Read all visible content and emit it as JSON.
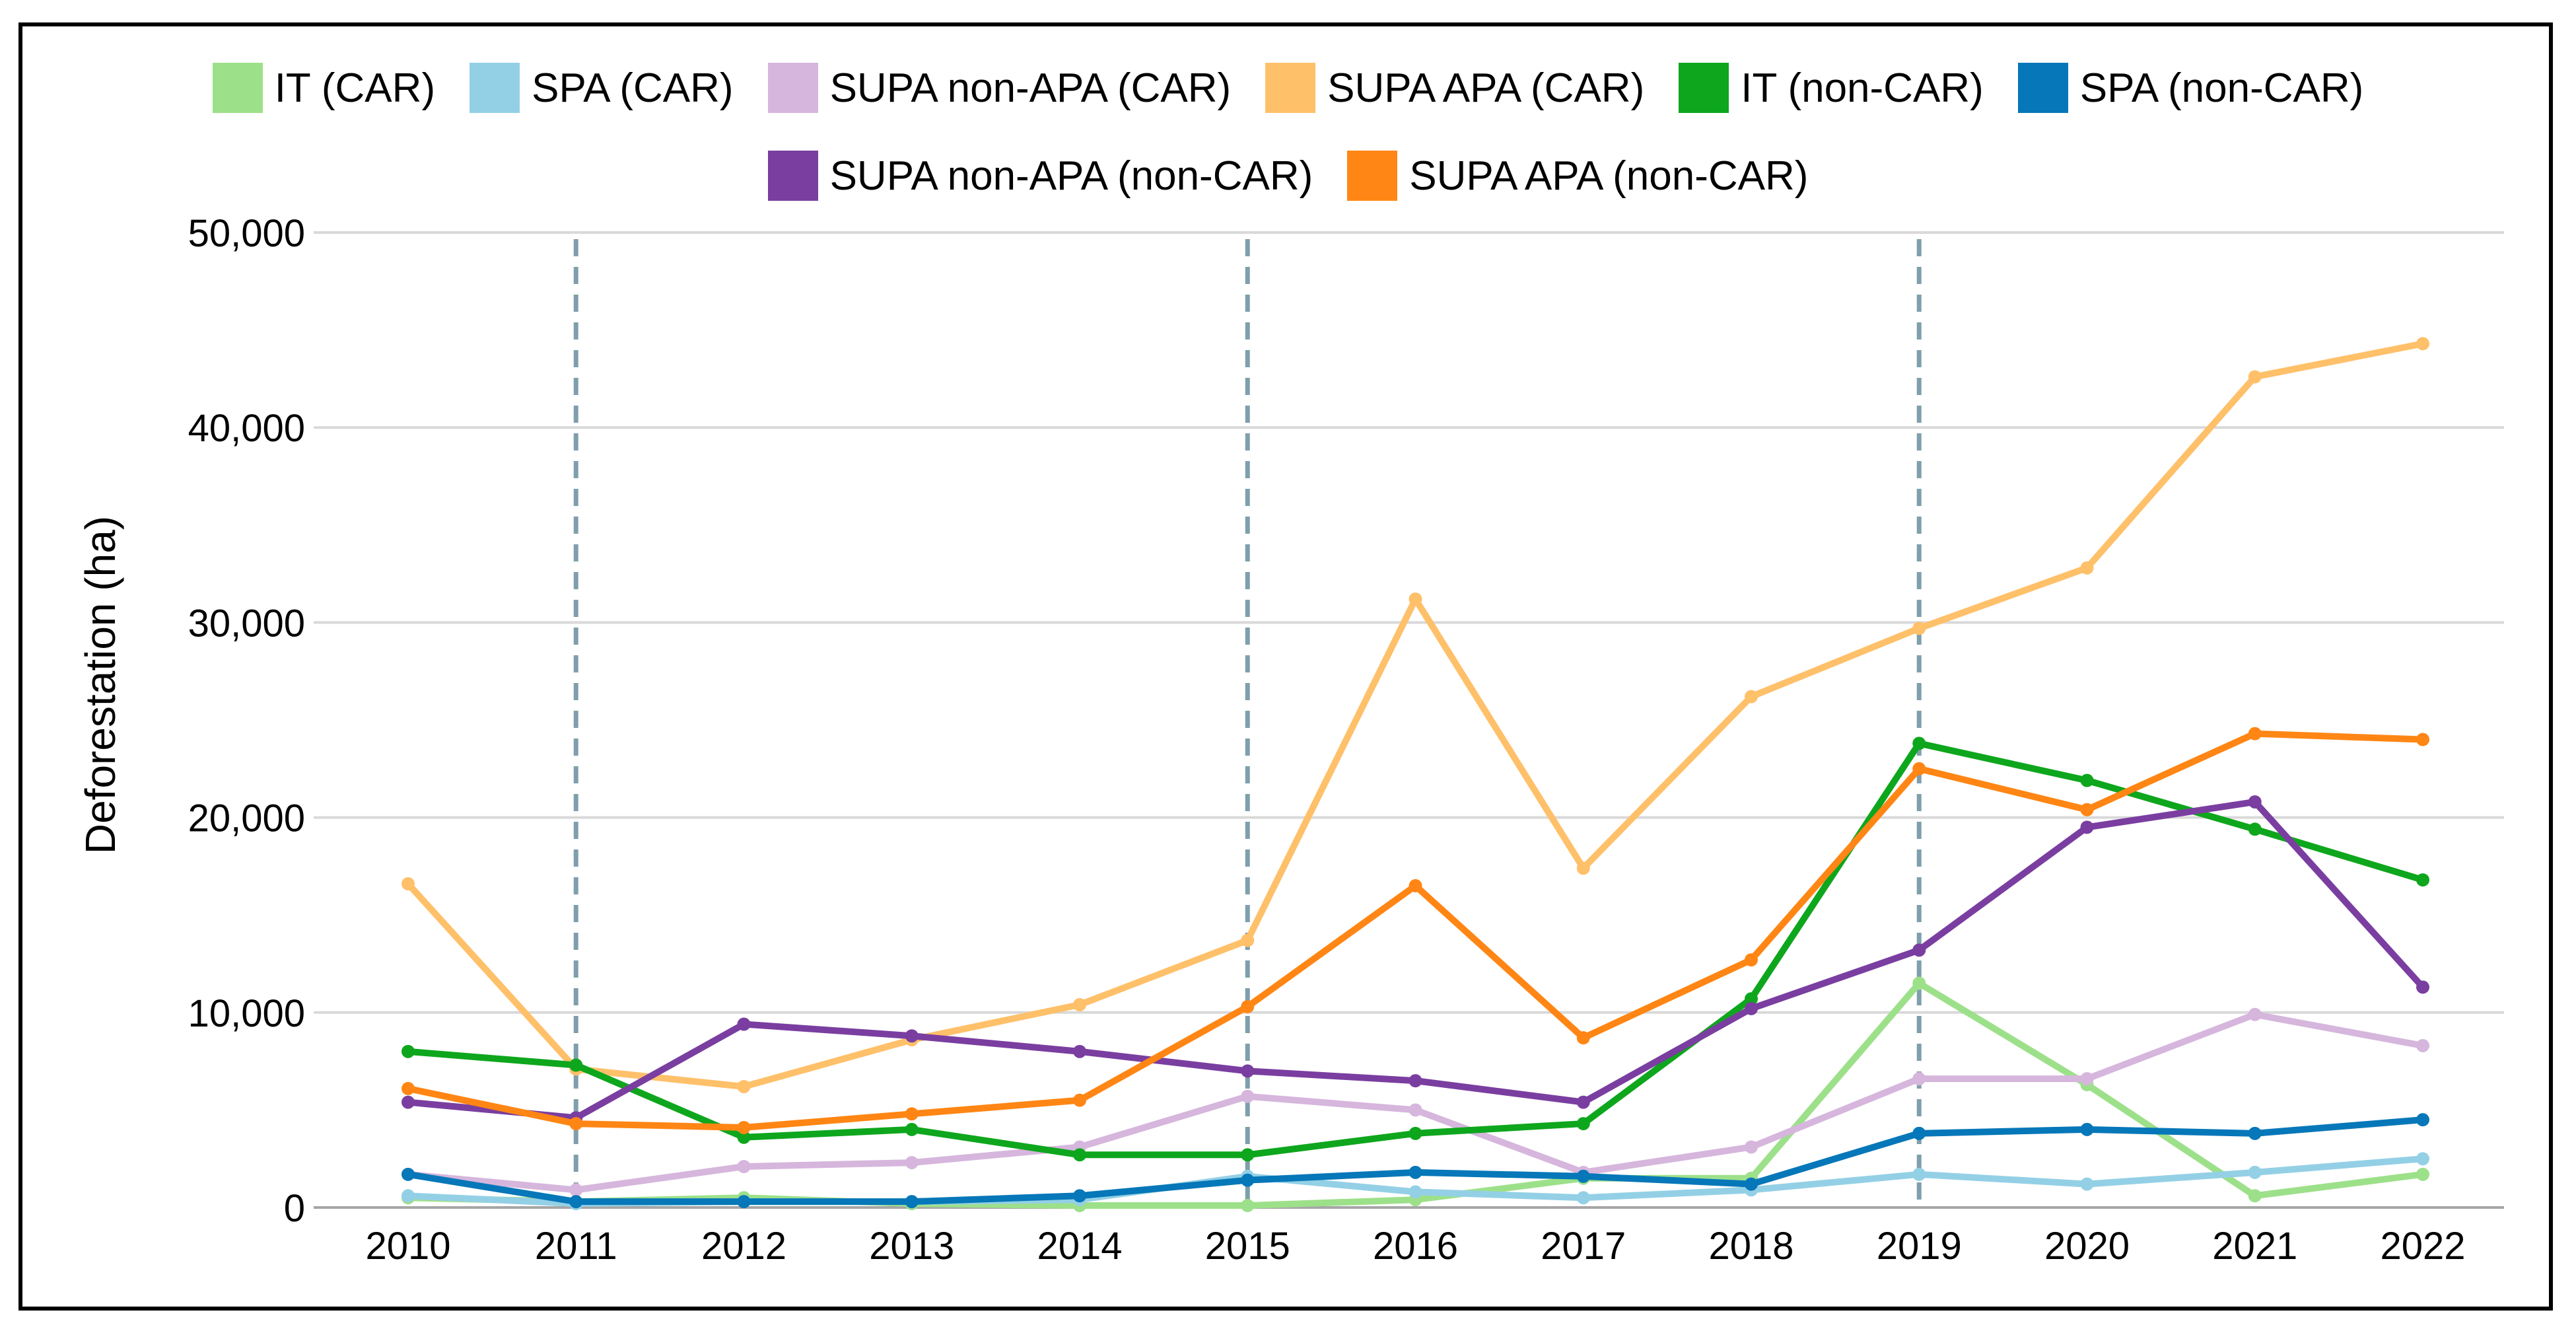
{
  "chart_data": {
    "type": "line",
    "title": "",
    "xlabel": "",
    "ylabel": "Deforestation (ha)",
    "x": [
      "2010",
      "2011",
      "2012",
      "2013",
      "2014",
      "2015",
      "2016",
      "2017",
      "2018",
      "2019",
      "2020",
      "2021",
      "2022"
    ],
    "ylim": [
      0,
      50000
    ],
    "yticks": [
      0,
      10000,
      20000,
      30000,
      40000,
      50000
    ],
    "ytick_labels": [
      "0",
      "10,000",
      "20,000",
      "30,000",
      "40,000",
      "50,000"
    ],
    "grid": "horizontal",
    "legend_position": "top",
    "vertical_markers": [
      "2011",
      "2015",
      "2019"
    ],
    "series": [
      {
        "name": "IT (CAR)",
        "color": "#9de08a",
        "values": [
          500,
          300,
          500,
          200,
          100,
          100,
          400,
          1500,
          1500,
          11500,
          6300,
          600,
          1700
        ]
      },
      {
        "name": "SPA (CAR)",
        "color": "#93d0e6",
        "values": [
          600,
          200,
          300,
          300,
          400,
          1600,
          800,
          500,
          900,
          1700,
          1200,
          1800,
          2500
        ]
      },
      {
        "name": "SUPA non-APA (CAR)",
        "color": "#d6b6dd",
        "values": [
          1700,
          900,
          2100,
          2300,
          3100,
          5700,
          5000,
          1800,
          3100,
          6600,
          6600,
          9900,
          8300
        ]
      },
      {
        "name": "SUPA APA (CAR)",
        "color": "#ffc06a",
        "values": [
          16600,
          7100,
          6200,
          8600,
          10400,
          13700,
          31200,
          17400,
          26200,
          29700,
          32800,
          42600,
          44300
        ]
      },
      {
        "name": "IT (non-CAR)",
        "color": "#0ea61d",
        "values": [
          8000,
          7300,
          3600,
          4000,
          2700,
          2700,
          3800,
          4300,
          10700,
          23800,
          21900,
          19400,
          16800
        ]
      },
      {
        "name": "SPA (non-CAR)",
        "color": "#0677b8",
        "values": [
          1700,
          300,
          300,
          300,
          600,
          1400,
          1800,
          1600,
          1200,
          3800,
          4000,
          3800,
          4500
        ]
      },
      {
        "name": "SUPA non-APA (non-CAR)",
        "color": "#7a3ea0",
        "values": [
          5400,
          4600,
          9400,
          8800,
          8000,
          7000,
          6500,
          5400,
          10200,
          13200,
          19500,
          20800,
          11300
        ]
      },
      {
        "name": "SUPA APA (non-CAR)",
        "color": "#ff8614",
        "values": [
          6100,
          4300,
          4100,
          4800,
          5500,
          10300,
          16500,
          8700,
          12700,
          22500,
          20400,
          24300,
          24000
        ]
      }
    ]
  }
}
